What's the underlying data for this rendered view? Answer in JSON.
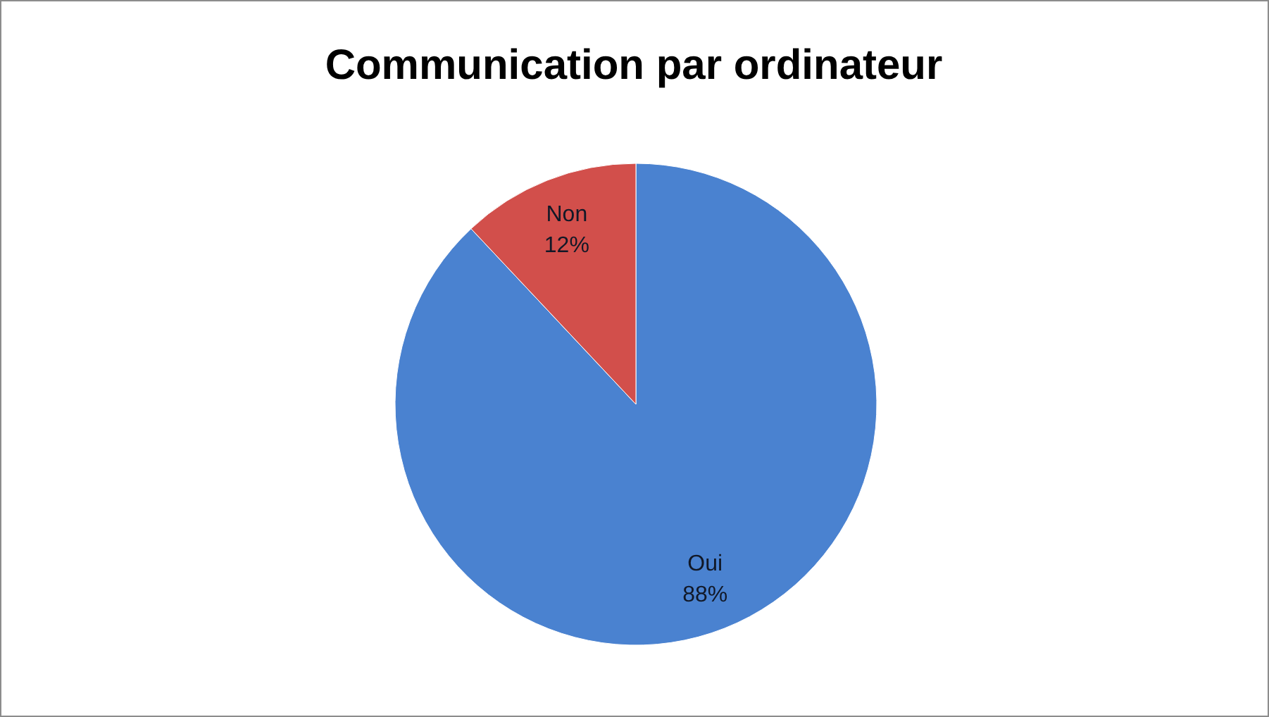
{
  "chart_data": {
    "type": "pie",
    "title": "Communication par ordinateur",
    "categories": [
      "Oui",
      "Non"
    ],
    "values": [
      88,
      12
    ],
    "colors": [
      "#4a82d0",
      "#d24f4b"
    ],
    "value_labels": [
      "88%",
      "12%"
    ],
    "legend": false
  }
}
